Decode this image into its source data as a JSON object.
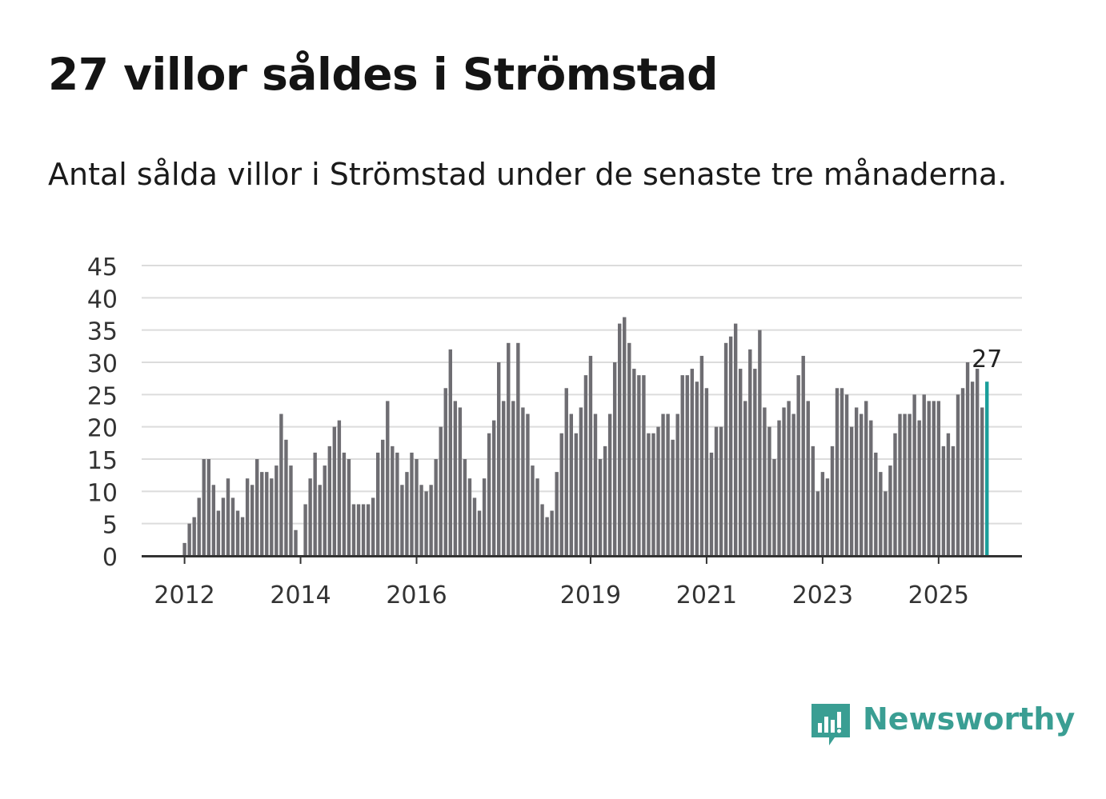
{
  "title": "27 villor såldes i Strömstad",
  "subtitle": "Antal sålda villor i Strömstad under de senaste tre månaderna.",
  "logo": {
    "name": "Newsworthy",
    "icon": "newsworthy-logo-icon",
    "color": "#3a9e93"
  },
  "colors": {
    "bar": "#6e6d72",
    "highlight": "#1a9e9a",
    "grid": "#dcdcdc",
    "axis": "#333333"
  },
  "chart_data": {
    "type": "bar",
    "title": "27 villor såldes i Strömstad",
    "xlabel": "",
    "ylabel": "",
    "ylim": [
      0,
      45
    ],
    "yticks": [
      "0",
      "5",
      "10",
      "15",
      "20",
      "25",
      "30",
      "35",
      "40",
      "45"
    ],
    "x_tick_labels": [
      "2012",
      "2014",
      "2016",
      "2019",
      "2021",
      "2023",
      "2025"
    ],
    "x_tick_index": [
      0,
      24,
      48,
      84,
      108,
      132,
      156
    ],
    "start_label": "2012-01",
    "grid": true,
    "highlight_label": "27",
    "values": [
      2,
      5,
      6,
      9,
      15,
      15,
      11,
      7,
      9,
      12,
      9,
      7,
      6,
      12,
      11,
      15,
      13,
      13,
      12,
      14,
      22,
      18,
      14,
      4,
      0,
      8,
      12,
      16,
      11,
      14,
      17,
      20,
      21,
      16,
      15,
      8,
      8,
      8,
      8,
      9,
      16,
      18,
      24,
      17,
      16,
      11,
      13,
      16,
      15,
      11,
      10,
      11,
      15,
      20,
      26,
      32,
      24,
      23,
      15,
      12,
      9,
      7,
      12,
      19,
      21,
      30,
      24,
      33,
      24,
      33,
      23,
      22,
      14,
      12,
      8,
      6,
      7,
      13,
      19,
      26,
      22,
      19,
      23,
      28,
      31,
      22,
      15,
      17,
      22,
      30,
      36,
      37,
      33,
      29,
      28,
      28,
      19,
      19,
      20,
      22,
      22,
      18,
      22,
      28,
      28,
      29,
      27,
      31,
      26,
      16,
      20,
      20,
      33,
      34,
      36,
      29,
      24,
      32,
      29,
      35,
      23,
      20,
      15,
      21,
      23,
      24,
      22,
      28,
      31,
      24,
      17,
      10,
      13,
      12,
      17,
      26,
      26,
      25,
      20,
      23,
      22,
      24,
      21,
      16,
      13,
      10,
      14,
      19,
      22,
      22,
      22,
      25,
      21,
      25,
      24,
      24,
      24,
      17,
      19,
      17,
      25,
      26,
      30,
      27,
      29,
      23,
      27
    ]
  }
}
